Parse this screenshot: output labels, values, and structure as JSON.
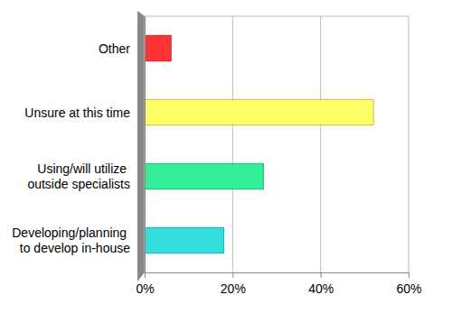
{
  "chart_data": {
    "type": "bar",
    "orientation": "horizontal",
    "categories": [
      "Other",
      "Unsure at this time",
      "Using/will utilize outside specialists",
      "Developing/planning to develop in-house"
    ],
    "values": [
      6,
      52,
      27,
      18
    ],
    "colors": [
      "#ff3333",
      "#ffff66",
      "#33ee99",
      "#33dddd"
    ],
    "xlim": [
      0,
      60
    ],
    "xticks": [
      {
        "value": 0,
        "label": "0%"
      },
      {
        "value": 20,
        "label": "20%"
      },
      {
        "value": 40,
        "label": "40%"
      },
      {
        "value": 60,
        "label": "60%"
      }
    ],
    "grid": true
  }
}
